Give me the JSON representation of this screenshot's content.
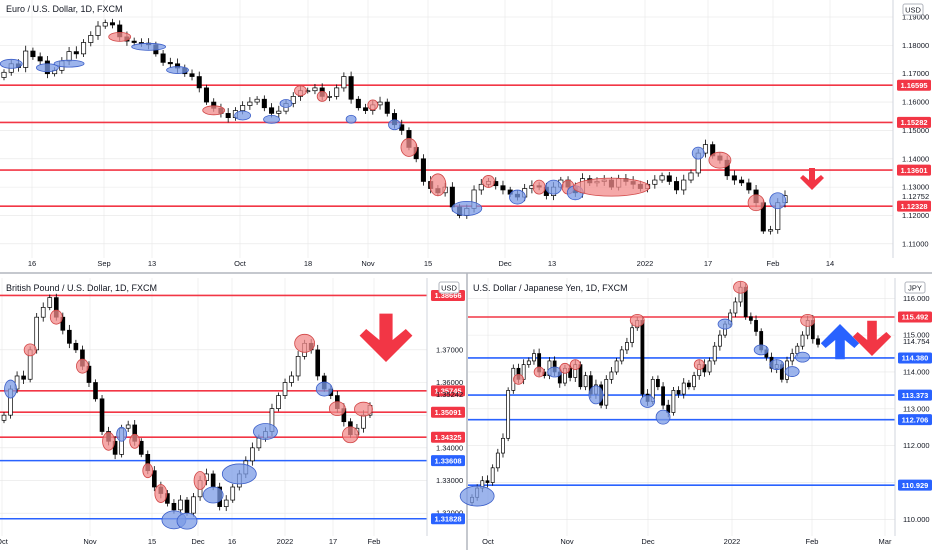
{
  "palette": {
    "up": "#ffffff",
    "down": "#000000",
    "red_line": "#f23645",
    "blue_line": "#2962ff",
    "red_marker": "#f28b8b",
    "blue_marker": "#7b9be6",
    "grid": "#e6e6e6",
    "arrow_red": "#f23645",
    "arrow_blue": "#2962ff"
  },
  "charts": [
    {
      "id": "eurusd",
      "title": "Euro / U.S. Dollar, 1D, FXCM",
      "currency": "USD",
      "chart_data": {
        "type": "candlestick",
        "symbol": "EURUSD",
        "interval": "1D",
        "ylim": [
          1.105,
          1.196
        ],
        "yticks": [
          1.11,
          1.12,
          1.13,
          1.14,
          1.15,
          1.16,
          1.17,
          1.18,
          1.19
        ],
        "ytick_labels": [
          "1.11000",
          "1.12000",
          "1.13000",
          "1.14000",
          "1.15000",
          "1.16000",
          "1.17000",
          "1.18000",
          "1.19000"
        ],
        "xlabels": [
          "16",
          "Sep",
          "13",
          "Oct",
          "18",
          "Nov",
          "15",
          "Dec",
          "13",
          "2022",
          "17",
          "Feb",
          "14"
        ],
        "levels": [
          {
            "value": 1.16595,
            "label": "1.16595",
            "color": "red"
          },
          {
            "value": 1.15282,
            "label": "1.15282",
            "color": "red"
          },
          {
            "value": 1.13601,
            "label": "1.13601",
            "color": "red"
          },
          {
            "value": 1.12328,
            "label": "1.12328",
            "color": "red"
          }
        ],
        "plain_prices": [
          "1.12752"
        ],
        "arrows": [
          {
            "direction": "down",
            "color": "red"
          }
        ],
        "closes": [
          1.1705,
          1.1735,
          1.1722,
          1.178,
          1.176,
          1.1745,
          1.17,
          1.1712,
          1.1745,
          1.1778,
          1.177,
          1.181,
          1.1835,
          1.1868,
          1.188,
          1.1872,
          1.183,
          1.1815,
          1.181,
          1.1808,
          1.1802,
          1.177,
          1.174,
          1.1735,
          1.172,
          1.17,
          1.169,
          1.165,
          1.16,
          1.1578,
          1.156,
          1.1545,
          1.157,
          1.1588,
          1.16,
          1.161,
          1.158,
          1.156,
          1.1568,
          1.1595,
          1.162,
          1.164,
          1.164,
          1.165,
          1.162,
          1.162,
          1.165,
          1.169,
          1.161,
          1.158,
          1.157,
          1.159,
          1.16,
          1.156,
          1.152,
          1.15,
          1.144,
          1.14,
          1.132,
          1.1295,
          1.128,
          1.13,
          1.123,
          1.12,
          1.1225,
          1.129,
          1.131,
          1.132,
          1.1305,
          1.129,
          1.1275,
          1.1265,
          1.1295,
          1.1305,
          1.13,
          1.127,
          1.13,
          1.1325,
          1.13,
          1.128,
          1.133,
          1.1315,
          1.132,
          1.1325,
          1.13,
          1.133,
          1.132,
          1.131,
          1.1295,
          1.131,
          1.1325,
          1.134,
          1.132,
          1.129,
          1.1325,
          1.135,
          1.142,
          1.145,
          1.141,
          1.1395,
          1.134,
          1.1325,
          1.1315,
          1.129,
          1.1245,
          1.1145,
          1.115,
          1.1245,
          1.127
        ]
      }
    },
    {
      "id": "gbpusd",
      "title": "British Pound / U.S. Dollar, 1D, FXCM",
      "currency": "USD",
      "chart_data": {
        "type": "candlestick",
        "symbol": "GBPUSD",
        "interval": "1D",
        "ylim": [
          1.313,
          1.392
        ],
        "yticks": [
          1.32,
          1.33,
          1.34,
          1.35,
          1.36,
          1.37
        ],
        "ytick_labels": [
          "1.32000",
          "1.33000",
          "1.34000",
          "1.35000",
          "1.36000",
          "1.37000"
        ],
        "xlabels": [
          "Oct",
          "Nov",
          "15",
          "Dec",
          "16",
          "2022",
          "17",
          "Feb"
        ],
        "levels": [
          {
            "value": 1.38666,
            "label": "1.38666",
            "color": "red"
          },
          {
            "value": 1.35745,
            "label": "1.35745",
            "color": "red"
          },
          {
            "value": 1.35091,
            "label": "1.35091",
            "color": "red"
          },
          {
            "value": 1.34325,
            "label": "1.34325",
            "color": "red"
          },
          {
            "value": 1.33608,
            "label": "1.33608",
            "color": "blue"
          },
          {
            "value": 1.31828,
            "label": "1.31828",
            "color": "blue"
          }
        ],
        "plain_prices": [
          "1.35242"
        ],
        "arrows": [
          {
            "direction": "down",
            "color": "red"
          }
        ],
        "closes": [
          1.35,
          1.358,
          1.362,
          1.361,
          1.37,
          1.38,
          1.383,
          1.386,
          1.38,
          1.376,
          1.372,
          1.37,
          1.365,
          1.36,
          1.355,
          1.345,
          1.342,
          1.338,
          1.346,
          1.347,
          1.342,
          1.338,
          1.333,
          1.328,
          1.326,
          1.323,
          1.321,
          1.324,
          1.32,
          1.325,
          1.33,
          1.332,
          1.328,
          1.322,
          1.324,
          1.328,
          1.332,
          1.336,
          1.34,
          1.343,
          1.345,
          1.352,
          1.356,
          1.36,
          1.362,
          1.368,
          1.372,
          1.37,
          1.362,
          1.358,
          1.356,
          1.352,
          1.348,
          1.344,
          1.346,
          1.35,
          1.353
        ]
      }
    },
    {
      "id": "usdjpy",
      "title": "U.S. Dollar / Japanese Yen, 1D, FXCM",
      "currency": "JPY",
      "chart_data": {
        "type": "candlestick",
        "symbol": "USDJPY",
        "interval": "1D",
        "ylim": [
          109.55,
          116.55
        ],
        "yticks": [
          110,
          111,
          112,
          113,
          114,
          115,
          116
        ],
        "ytick_labels": [
          "110.000",
          "111.000",
          "112.000",
          "113.000",
          "114.000",
          "115.000",
          "116.000"
        ],
        "xlabels": [
          "Oct",
          "Nov",
          "Dec",
          "2022",
          "Feb",
          "Mar"
        ],
        "levels": [
          {
            "value": 115.492,
            "label": "115.492",
            "color": "red"
          },
          {
            "value": 114.38,
            "label": "114.380",
            "color": "blue"
          },
          {
            "value": 113.373,
            "label": "113.373",
            "color": "blue"
          },
          {
            "value": 112.706,
            "label": "112.706",
            "color": "blue"
          },
          {
            "value": 110.929,
            "label": "110.929",
            "color": "blue"
          }
        ],
        "plain_prices": [
          "114.754"
        ],
        "arrows": [
          {
            "direction": "up",
            "color": "blue"
          },
          {
            "direction": "down",
            "color": "red"
          }
        ],
        "closes": [
          110.6,
          110.85,
          111.05,
          111.0,
          111.4,
          111.8,
          112.2,
          113.5,
          114.1,
          113.8,
          114.2,
          114.3,
          114.5,
          114.0,
          113.9,
          114.3,
          114.0,
          113.7,
          114.1,
          113.85,
          114.2,
          113.6,
          113.9,
          113.4,
          113.65,
          113.1,
          113.8,
          114.0,
          114.3,
          114.6,
          114.8,
          115.2,
          115.4,
          113.4,
          113.2,
          113.8,
          113.6,
          113.1,
          112.9,
          113.5,
          113.4,
          113.7,
          113.6,
          113.9,
          114.2,
          114.0,
          114.3,
          114.7,
          115.0,
          115.3,
          115.6,
          115.9,
          116.3,
          115.5,
          115.4,
          115.1,
          114.6,
          114.4,
          114.1,
          114.2,
          113.8,
          114.3,
          114.5,
          114.7,
          115.0,
          115.4,
          114.9,
          114.75
        ]
      }
    }
  ]
}
